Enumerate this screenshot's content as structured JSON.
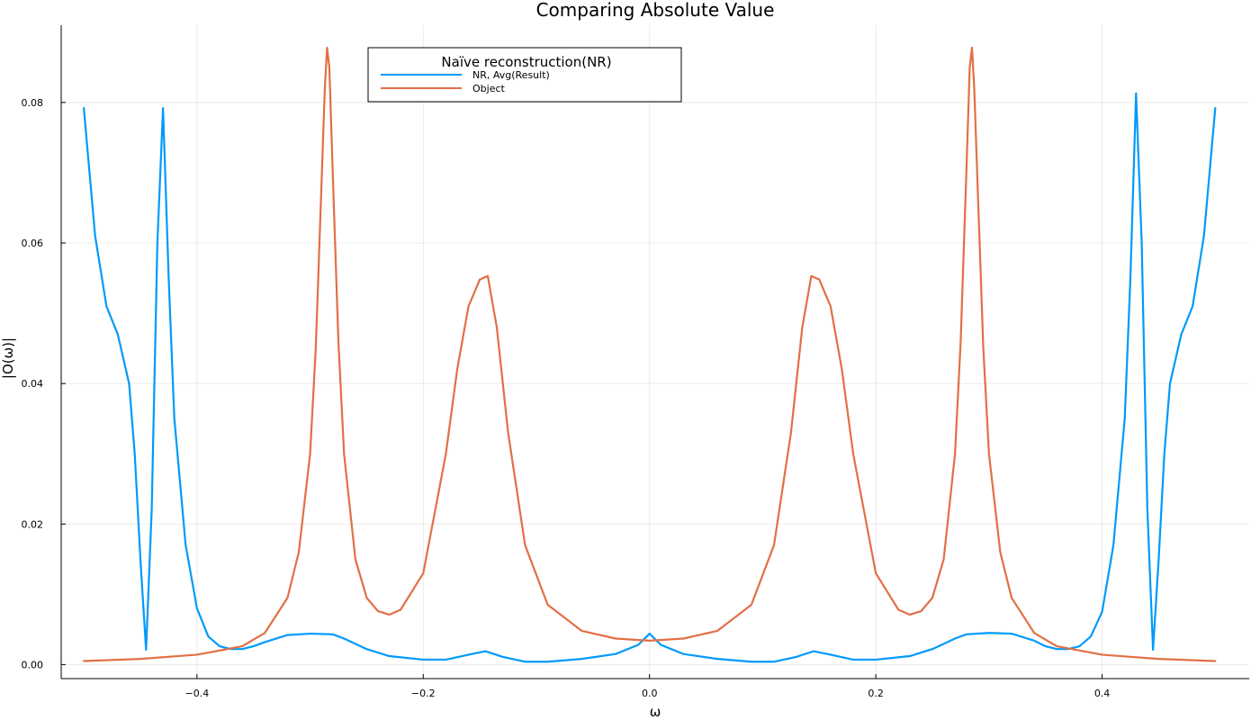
{
  "chart_data": {
    "type": "line",
    "title": "Comparing Absolute Value",
    "xlabel": "ω",
    "ylabel": "|O(ω)|",
    "xlim": [
      -0.52,
      0.53
    ],
    "ylim": [
      -0.002,
      0.091
    ],
    "xticks": [
      -0.4,
      -0.2,
      0.0,
      0.2,
      0.4
    ],
    "xtick_labels": [
      "−0.4",
      "−0.2",
      "0.0",
      "0.2",
      "0.4"
    ],
    "yticks": [
      0.0,
      0.02,
      0.04,
      0.06,
      0.08
    ],
    "ytick_labels": [
      "0.00",
      "0.02",
      "0.04",
      "0.06",
      "0.08"
    ],
    "grid": true,
    "legend": {
      "title": "Naïve reconstruction(NR)",
      "position": "top-center"
    },
    "series": [
      {
        "name": "NR, Avg(Result)",
        "color": "#009AFA",
        "x": [
          -0.5,
          -0.49,
          -0.48,
          -0.47,
          -0.46,
          -0.455,
          -0.45,
          -0.445,
          -0.44,
          -0.435,
          -0.43,
          -0.425,
          -0.42,
          -0.41,
          -0.4,
          -0.39,
          -0.38,
          -0.37,
          -0.36,
          -0.35,
          -0.34,
          -0.32,
          -0.3,
          -0.28,
          -0.27,
          -0.25,
          -0.23,
          -0.2,
          -0.18,
          -0.16,
          -0.145,
          -0.13,
          -0.11,
          -0.09,
          -0.06,
          -0.03,
          -0.01,
          0.0,
          0.01,
          0.03,
          0.06,
          0.09,
          0.11,
          0.13,
          0.145,
          0.16,
          0.18,
          0.2,
          0.23,
          0.25,
          0.27,
          0.28,
          0.3,
          0.32,
          0.34,
          0.35,
          0.36,
          0.37,
          0.38,
          0.39,
          0.4,
          0.41,
          0.42,
          0.425,
          0.43,
          0.435,
          0.44,
          0.445,
          0.45,
          0.455,
          0.46,
          0.47,
          0.48,
          0.49,
          0.5
        ],
        "y": [
          0.0792,
          0.061,
          0.051,
          0.047,
          0.04,
          0.03,
          0.015,
          0.0021,
          0.022,
          0.06,
          0.0792,
          0.055,
          0.035,
          0.017,
          0.008,
          0.004,
          0.0026,
          0.0022,
          0.0022,
          0.0026,
          0.0032,
          0.0042,
          0.0044,
          0.0043,
          0.0037,
          0.0022,
          0.0012,
          0.0007,
          0.0007,
          0.0014,
          0.0019,
          0.0011,
          0.0004,
          0.0004,
          0.0008,
          0.0015,
          0.0028,
          0.0044,
          0.0028,
          0.0015,
          0.0008,
          0.0004,
          0.0004,
          0.0011,
          0.0019,
          0.0014,
          0.0007,
          0.0007,
          0.0012,
          0.0022,
          0.0037,
          0.0043,
          0.0045,
          0.0044,
          0.0034,
          0.0026,
          0.0022,
          0.0022,
          0.0026,
          0.004,
          0.0075,
          0.017,
          0.035,
          0.055,
          0.0813,
          0.06,
          0.022,
          0.0021,
          0.015,
          0.03,
          0.04,
          0.047,
          0.051,
          0.061,
          0.0792
        ]
      },
      {
        "name": "Object",
        "color": "#E26F46",
        "x": [
          -0.5,
          -0.45,
          -0.4,
          -0.36,
          -0.34,
          -0.32,
          -0.31,
          -0.3,
          -0.295,
          -0.29,
          -0.287,
          -0.285,
          -0.283,
          -0.28,
          -0.275,
          -0.27,
          -0.26,
          -0.25,
          -0.24,
          -0.23,
          -0.22,
          -0.2,
          -0.18,
          -0.17,
          -0.16,
          -0.15,
          -0.143,
          -0.135,
          -0.125,
          -0.11,
          -0.09,
          -0.06,
          -0.03,
          0.0,
          0.03,
          0.06,
          0.09,
          0.11,
          0.125,
          0.135,
          0.143,
          0.15,
          0.16,
          0.17,
          0.18,
          0.2,
          0.22,
          0.23,
          0.24,
          0.25,
          0.26,
          0.27,
          0.275,
          0.28,
          0.283,
          0.285,
          0.287,
          0.29,
          0.295,
          0.3,
          0.31,
          0.32,
          0.34,
          0.36,
          0.4,
          0.45,
          0.5
        ],
        "y": [
          0.0005,
          0.0008,
          0.0014,
          0.0026,
          0.0045,
          0.0095,
          0.016,
          0.03,
          0.045,
          0.068,
          0.082,
          0.0878,
          0.085,
          0.07,
          0.046,
          0.03,
          0.015,
          0.0095,
          0.0076,
          0.0071,
          0.0078,
          0.013,
          0.03,
          0.042,
          0.051,
          0.0548,
          0.0553,
          0.048,
          0.033,
          0.017,
          0.0085,
          0.0048,
          0.0037,
          0.0034,
          0.0037,
          0.0048,
          0.0085,
          0.017,
          0.033,
          0.048,
          0.0553,
          0.0548,
          0.051,
          0.042,
          0.03,
          0.013,
          0.0078,
          0.0071,
          0.0076,
          0.0095,
          0.015,
          0.03,
          0.046,
          0.07,
          0.085,
          0.0878,
          0.082,
          0.068,
          0.045,
          0.03,
          0.016,
          0.0095,
          0.0045,
          0.0026,
          0.0014,
          0.0008,
          0.0005
        ]
      }
    ]
  }
}
